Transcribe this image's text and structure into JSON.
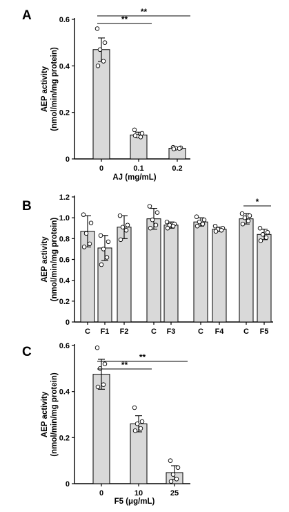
{
  "chart_data": [
    {
      "panel": "A",
      "type": "bar",
      "xlabel": "AJ (mg/mL)",
      "ylabel": [
        "AEP activity",
        "(nmol/min/mg protein)"
      ],
      "ylim": [
        0,
        0.6
      ],
      "yticks": [
        "0",
        "0.2",
        "0.4",
        "0.6"
      ],
      "categories": [
        "0",
        "0.1",
        "0.2"
      ],
      "values": [
        0.47,
        0.103,
        0.046
      ],
      "errors": [
        0.05,
        0.012,
        0.004
      ],
      "points": [
        [
          0.56,
          0.5,
          0.47,
          0.42,
          0.4
        ],
        [
          0.125,
          0.11,
          0.098,
          0.094,
          0.1
        ],
        [
          0.05,
          0.048,
          0.046,
          0.045,
          0.043
        ]
      ],
      "significance": [
        {
          "from": 0,
          "to": 1,
          "label": "**"
        },
        {
          "from": 0,
          "to": 2,
          "label": "**"
        }
      ]
    },
    {
      "panel": "B",
      "type": "bar",
      "xlabel": "",
      "ylabel": [
        "AEP activity",
        "(nmol/min/mg protein)"
      ],
      "ylim": [
        0,
        1.2
      ],
      "yticks": [
        "0",
        "0.2",
        "0.4",
        "0.6",
        "0.8",
        "1.0",
        "1.2"
      ],
      "categories": [
        "C",
        "F1",
        "F2",
        "C",
        "F3",
        "C",
        "F4",
        "C",
        "F5"
      ],
      "values": [
        0.87,
        0.71,
        0.91,
        0.99,
        0.93,
        0.96,
        0.89,
        0.99,
        0.84
      ],
      "errors": [
        0.15,
        0.12,
        0.11,
        0.1,
        0.03,
        0.04,
        0.02,
        0.05,
        0.05
      ],
      "points": [
        [
          1.03,
          0.95,
          0.85,
          0.75,
          0.72
        ],
        [
          0.83,
          0.77,
          0.7,
          0.62,
          0.55
        ],
        [
          1.02,
          0.93,
          0.91,
          0.88,
          0.79
        ],
        [
          1.11,
          1.05,
          0.98,
          0.93,
          0.9
        ],
        [
          0.96,
          0.94,
          0.93,
          0.92,
          0.9
        ],
        [
          1.01,
          0.98,
          0.96,
          0.94,
          0.92
        ],
        [
          0.92,
          0.9,
          0.89,
          0.88,
          0.87
        ],
        [
          1.04,
          1.02,
          1.0,
          0.97,
          0.94
        ],
        [
          0.9,
          0.86,
          0.84,
          0.81,
          0.78
        ]
      ],
      "significance": [
        {
          "from": 7,
          "to": 8,
          "label": "*"
        }
      ]
    },
    {
      "panel": "C",
      "type": "bar",
      "xlabel": "F5 (μg/mL)",
      "ylabel": [
        "AEP activity",
        "(nmol/min/mg protein)"
      ],
      "ylim": [
        0,
        0.6
      ],
      "yticks": [
        "0",
        "0.2",
        "0.4",
        "0.6"
      ],
      "categories": [
        "0",
        "10",
        "25"
      ],
      "values": [
        0.475,
        0.26,
        0.048
      ],
      "errors": [
        0.065,
        0.035,
        0.03
      ],
      "points": [
        [
          0.59,
          0.52,
          0.5,
          0.43,
          0.42
        ],
        [
          0.33,
          0.27,
          0.26,
          0.24,
          0.23
        ],
        [
          0.1,
          0.07,
          0.04,
          0.02,
          0.01
        ]
      ],
      "significance": [
        {
          "from": 0,
          "to": 1,
          "label": "**"
        },
        {
          "from": 0,
          "to": 2,
          "label": "**"
        }
      ]
    }
  ]
}
